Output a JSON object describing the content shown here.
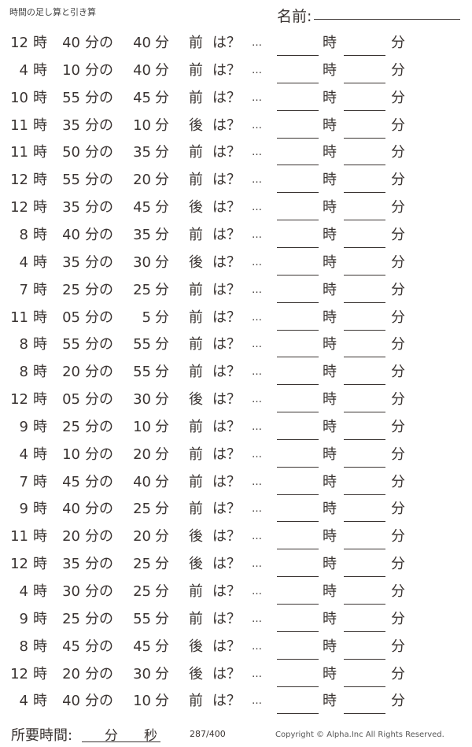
{
  "header": {
    "title": "時間の足し算と引き算",
    "name_label": "名前:"
  },
  "labels": {
    "hour": "時",
    "minute_of": "分の",
    "minute": "分",
    "question": "は？",
    "dots": "…"
  },
  "problems": [
    {
      "hour": "12",
      "minute": "40",
      "delta": "40",
      "direction": "前"
    },
    {
      "hour": "4",
      "minute": "10",
      "delta": "40",
      "direction": "前"
    },
    {
      "hour": "10",
      "minute": "55",
      "delta": "45",
      "direction": "前"
    },
    {
      "hour": "11",
      "minute": "35",
      "delta": "10",
      "direction": "後"
    },
    {
      "hour": "11",
      "minute": "50",
      "delta": "35",
      "direction": "前"
    },
    {
      "hour": "12",
      "minute": "55",
      "delta": "20",
      "direction": "前"
    },
    {
      "hour": "12",
      "minute": "35",
      "delta": "45",
      "direction": "後"
    },
    {
      "hour": "8",
      "minute": "40",
      "delta": "35",
      "direction": "前"
    },
    {
      "hour": "4",
      "minute": "35",
      "delta": "30",
      "direction": "後"
    },
    {
      "hour": "7",
      "minute": "25",
      "delta": "25",
      "direction": "前"
    },
    {
      "hour": "11",
      "minute": "05",
      "delta": "5",
      "direction": "前"
    },
    {
      "hour": "8",
      "minute": "55",
      "delta": "55",
      "direction": "前"
    },
    {
      "hour": "8",
      "minute": "20",
      "delta": "55",
      "direction": "前"
    },
    {
      "hour": "12",
      "minute": "05",
      "delta": "30",
      "direction": "後"
    },
    {
      "hour": "9",
      "minute": "25",
      "delta": "10",
      "direction": "前"
    },
    {
      "hour": "4",
      "minute": "10",
      "delta": "20",
      "direction": "前"
    },
    {
      "hour": "7",
      "minute": "45",
      "delta": "40",
      "direction": "前"
    },
    {
      "hour": "9",
      "minute": "40",
      "delta": "25",
      "direction": "前"
    },
    {
      "hour": "11",
      "minute": "20",
      "delta": "20",
      "direction": "後"
    },
    {
      "hour": "12",
      "minute": "35",
      "delta": "25",
      "direction": "後"
    },
    {
      "hour": "4",
      "minute": "30",
      "delta": "25",
      "direction": "前"
    },
    {
      "hour": "9",
      "minute": "25",
      "delta": "55",
      "direction": "前"
    },
    {
      "hour": "8",
      "minute": "45",
      "delta": "45",
      "direction": "後"
    },
    {
      "hour": "12",
      "minute": "20",
      "delta": "30",
      "direction": "後"
    },
    {
      "hour": "4",
      "minute": "40",
      "delta": "10",
      "direction": "前"
    }
  ],
  "footer": {
    "time_required_label": "所要時間:",
    "minute_unit": "分",
    "second_unit": "秒",
    "page_counter": "287/400",
    "copyright": "Copyright ©  Alpha.Inc All Rights Reserved."
  }
}
